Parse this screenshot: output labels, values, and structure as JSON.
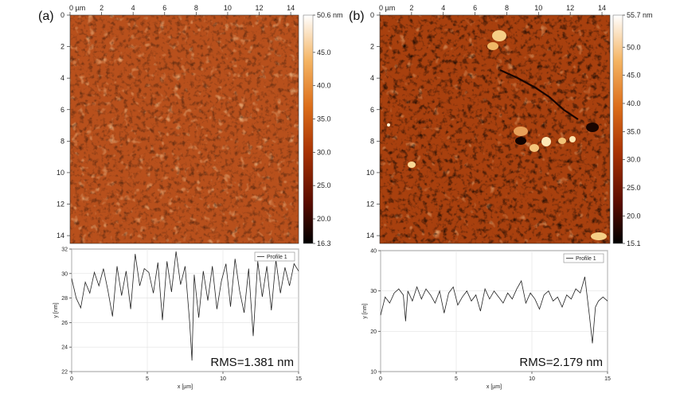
{
  "panel_labels": [
    "(a)",
    "(b)"
  ],
  "chart_data": [
    {
      "type": "heatmap",
      "panel": "(a)",
      "x_unit": "µm",
      "xlim": [
        0,
        14.5
      ],
      "ylim": [
        0,
        14.5
      ],
      "x_ticks": [
        0,
        2,
        4,
        6,
        8,
        10,
        12,
        14
      ],
      "y_ticks": [
        0,
        2,
        4,
        6,
        8,
        10,
        12,
        14
      ],
      "colorbar": {
        "unit": "nm",
        "max_label": "50.6 nm",
        "min": 16.3,
        "max": 50.6,
        "tick_labels": [
          "50.6 nm",
          "45.0",
          "40.0",
          "35.0",
          "30.0",
          "25.0",
          "20.0",
          "16.3"
        ],
        "tick_values": [
          50.6,
          45.0,
          40.0,
          35.0,
          30.0,
          25.0,
          20.0,
          16.3
        ]
      }
    },
    {
      "type": "line",
      "panel": "(a)",
      "xlabel": "x [µm]",
      "ylabel": "y [nm]",
      "xlim": [
        0,
        15
      ],
      "ylim": [
        22,
        32
      ],
      "x_ticks": [
        0,
        5,
        10,
        15
      ],
      "y_ticks": [
        22,
        24,
        26,
        28,
        30,
        32
      ],
      "legend": "top-right",
      "annotation": "RMS=1.381 nm",
      "grid": true,
      "series": [
        {
          "name": "Profile 1",
          "x": [
            0.0,
            0.3,
            0.6,
            0.9,
            1.2,
            1.5,
            1.8,
            2.1,
            2.4,
            2.7,
            3.0,
            3.3,
            3.6,
            3.9,
            4.2,
            4.5,
            4.8,
            5.1,
            5.4,
            5.7,
            6.0,
            6.3,
            6.6,
            6.9,
            7.2,
            7.5,
            7.8,
            7.95,
            8.1,
            8.4,
            8.7,
            9.0,
            9.3,
            9.6,
            9.9,
            10.2,
            10.5,
            10.8,
            11.1,
            11.4,
            11.7,
            12.0,
            12.3,
            12.6,
            12.9,
            13.2,
            13.5,
            13.8,
            14.1,
            14.4,
            14.7,
            15.0
          ],
          "y": [
            29.6,
            28.0,
            27.2,
            29.3,
            28.4,
            30.1,
            29.0,
            30.4,
            28.6,
            26.5,
            30.6,
            28.2,
            30.2,
            27.1,
            31.6,
            29.0,
            30.4,
            30.1,
            28.4,
            30.9,
            26.2,
            31.0,
            28.5,
            31.8,
            29.1,
            30.6,
            26.0,
            22.9,
            29.9,
            26.4,
            30.2,
            27.8,
            30.6,
            27.1,
            29.4,
            30.8,
            27.3,
            31.2,
            28.6,
            26.8,
            30.4,
            24.9,
            31.0,
            28.1,
            30.6,
            27.0,
            31.1,
            28.4,
            30.5,
            29.0,
            30.8,
            30.2
          ]
        }
      ]
    },
    {
      "type": "heatmap",
      "panel": "(b)",
      "x_unit": "µm",
      "xlim": [
        0,
        14.5
      ],
      "ylim": [
        0,
        14.5
      ],
      "x_ticks": [
        0,
        2,
        4,
        6,
        8,
        10,
        12,
        14
      ],
      "y_ticks": [
        0,
        2,
        4,
        6,
        8,
        10,
        12,
        14
      ],
      "colorbar": {
        "unit": "nm",
        "max_label": "55.7 nm",
        "min": 15.1,
        "max": 55.7,
        "tick_labels": [
          "55.7 nm",
          "50.0",
          "45.0",
          "40.0",
          "35.0",
          "30.0",
          "25.0",
          "20.0",
          "15.1"
        ],
        "tick_values": [
          55.7,
          50.0,
          45.0,
          40.0,
          35.0,
          30.0,
          25.0,
          20.0,
          15.1
        ]
      }
    },
    {
      "type": "line",
      "panel": "(b)",
      "xlabel": "x [µm]",
      "ylabel": "y [nm]",
      "xlim": [
        0,
        15
      ],
      "ylim": [
        10,
        40
      ],
      "x_ticks": [
        0,
        5,
        10,
        15
      ],
      "y_ticks": [
        10,
        20,
        30,
        40
      ],
      "legend": "top-right",
      "annotation": "RMS=2.179 nm",
      "grid": true,
      "series": [
        {
          "name": "Profile 1",
          "x": [
            0.0,
            0.3,
            0.6,
            0.9,
            1.2,
            1.5,
            1.65,
            1.8,
            2.1,
            2.4,
            2.7,
            3.0,
            3.3,
            3.6,
            3.9,
            4.2,
            4.5,
            4.8,
            5.1,
            5.4,
            5.7,
            6.0,
            6.3,
            6.6,
            6.9,
            7.2,
            7.5,
            7.8,
            8.1,
            8.4,
            8.7,
            9.0,
            9.3,
            9.6,
            9.9,
            10.2,
            10.5,
            10.8,
            11.1,
            11.4,
            11.7,
            12.0,
            12.3,
            12.6,
            12.9,
            13.2,
            13.5,
            13.8,
            14.0,
            14.2,
            14.4,
            14.7,
            15.0
          ],
          "y": [
            24.0,
            28.5,
            27.0,
            29.5,
            30.5,
            29.0,
            22.5,
            30.0,
            27.5,
            31.0,
            28.0,
            30.5,
            29.0,
            27.0,
            30.0,
            24.5,
            29.5,
            31.0,
            26.5,
            28.5,
            30.0,
            27.5,
            29.0,
            25.0,
            30.5,
            28.0,
            30.0,
            28.5,
            27.0,
            29.5,
            28.0,
            30.5,
            32.5,
            27.0,
            29.5,
            28.0,
            25.5,
            29.0,
            30.0,
            27.5,
            28.5,
            26.0,
            29.0,
            28.0,
            30.5,
            29.5,
            33.5,
            24.0,
            17.0,
            26.0,
            27.5,
            28.5,
            27.5
          ]
        }
      ]
    }
  ]
}
